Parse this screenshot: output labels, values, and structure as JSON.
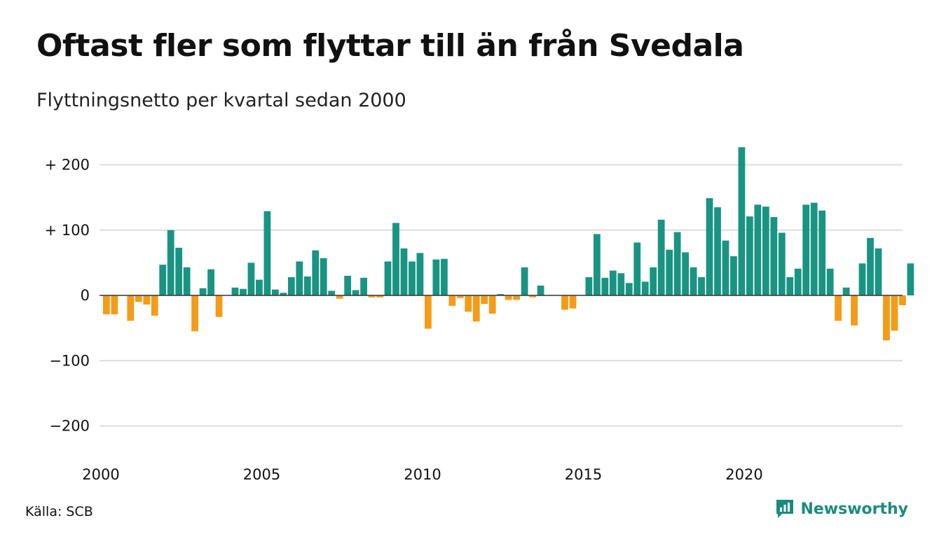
{
  "title": "Oftast fler som flyttar till än från Svedala",
  "subtitle": "Flyttningsnetto per kvartal sedan 2000",
  "source": "Källa: SCB",
  "brand": "Newsworthy",
  "colors": {
    "positive": "#1a9482",
    "negative": "#f39c1a",
    "grid": "#dddddd",
    "axis": "#333333",
    "brand": "#1a8c7c"
  },
  "chart_data": {
    "type": "bar",
    "title": "Oftast fler som flyttar till än från Svedala",
    "subtitle": "Flyttningsnetto per kvartal sedan 2000",
    "ylim": [
      -250,
      230
    ],
    "yticks": [
      200,
      100,
      0,
      -100,
      -200
    ],
    "ytick_labels": [
      "+ 200",
      "+ 100",
      "0",
      "−100",
      "−200"
    ],
    "xtick_labels": [
      "2000",
      "2005",
      "2010",
      "2015",
      "2020"
    ],
    "xtick_years": [
      2000,
      2005,
      2010,
      2015,
      2020
    ],
    "start_year": 2000,
    "grid": true,
    "values": [
      -29,
      -29,
      0,
      -39,
      -10,
      -14,
      -31,
      47,
      100,
      73,
      43,
      -55,
      11,
      40,
      -33,
      0,
      12,
      10,
      50,
      24,
      129,
      9,
      4,
      28,
      52,
      29,
      69,
      57,
      7,
      -5,
      30,
      8,
      27,
      -3,
      -3,
      52,
      111,
      72,
      52,
      65,
      -51,
      55,
      56,
      -16,
      -4,
      -25,
      -40,
      -13,
      -28,
      2,
      -7,
      -7,
      43,
      -3,
      15,
      0,
      0,
      -22,
      -20,
      0,
      28,
      94,
      27,
      38,
      34,
      19,
      81,
      21,
      43,
      116,
      70,
      97,
      66,
      43,
      28,
      149,
      135,
      84,
      60,
      227,
      121,
      139,
      136,
      120,
      96,
      28,
      41,
      139,
      142,
      130,
      41,
      -39,
      12,
      -46,
      49,
      88,
      72,
      -69,
      -54,
      -15,
      49
    ]
  }
}
